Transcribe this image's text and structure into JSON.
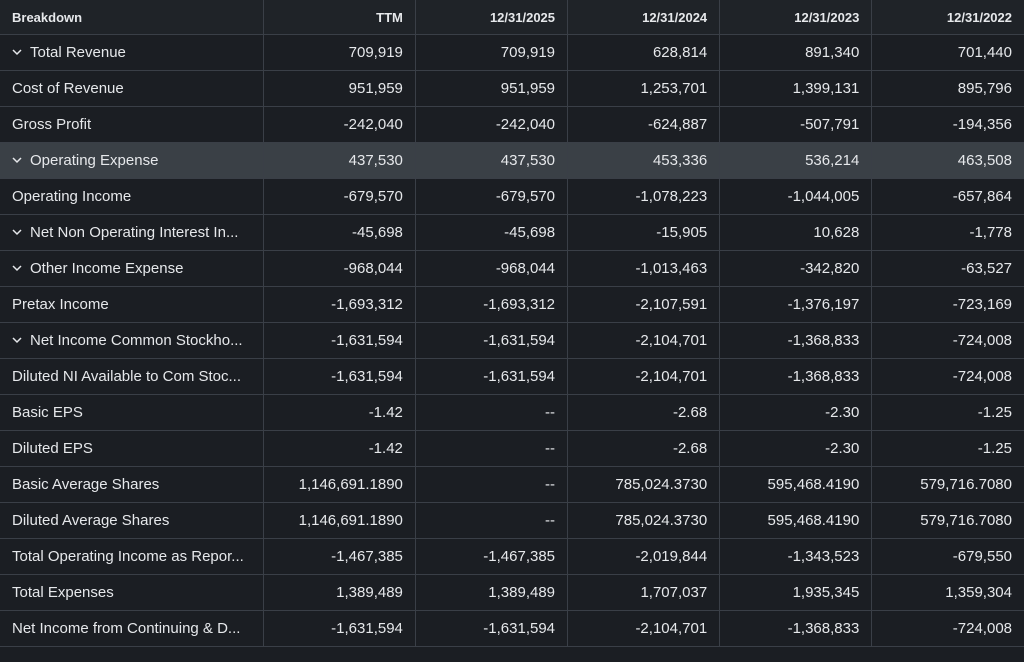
{
  "headers": [
    "Breakdown",
    "TTM",
    "12/31/2025",
    "12/31/2024",
    "12/31/2023",
    "12/31/2022"
  ],
  "rows": [
    {
      "label": "Total Revenue",
      "expandable": true,
      "highlight": false,
      "values": [
        "709,919",
        "709,919",
        "628,814",
        "891,340",
        "701,440"
      ]
    },
    {
      "label": "Cost of Revenue",
      "expandable": false,
      "highlight": false,
      "values": [
        "951,959",
        "951,959",
        "1,253,701",
        "1,399,131",
        "895,796"
      ]
    },
    {
      "label": "Gross Profit",
      "expandable": false,
      "highlight": false,
      "values": [
        "-242,040",
        "-242,040",
        "-624,887",
        "-507,791",
        "-194,356"
      ]
    },
    {
      "label": "Operating Expense",
      "expandable": true,
      "highlight": true,
      "values": [
        "437,530",
        "437,530",
        "453,336",
        "536,214",
        "463,508"
      ]
    },
    {
      "label": "Operating Income",
      "expandable": false,
      "highlight": false,
      "values": [
        "-679,570",
        "-679,570",
        "-1,078,223",
        "-1,044,005",
        "-657,864"
      ]
    },
    {
      "label": "Net Non Operating Interest In...",
      "expandable": true,
      "highlight": false,
      "values": [
        "-45,698",
        "-45,698",
        "-15,905",
        "10,628",
        "-1,778"
      ]
    },
    {
      "label": "Other Income Expense",
      "expandable": true,
      "highlight": false,
      "values": [
        "-968,044",
        "-968,044",
        "-1,013,463",
        "-342,820",
        "-63,527"
      ]
    },
    {
      "label": "Pretax Income",
      "expandable": false,
      "highlight": false,
      "values": [
        "-1,693,312",
        "-1,693,312",
        "-2,107,591",
        "-1,376,197",
        "-723,169"
      ]
    },
    {
      "label": "Net Income Common Stockho...",
      "expandable": true,
      "highlight": false,
      "values": [
        "-1,631,594",
        "-1,631,594",
        "-2,104,701",
        "-1,368,833",
        "-724,008"
      ]
    },
    {
      "label": "Diluted NI Available to Com Stoc...",
      "expandable": false,
      "highlight": false,
      "values": [
        "-1,631,594",
        "-1,631,594",
        "-2,104,701",
        "-1,368,833",
        "-724,008"
      ]
    },
    {
      "label": "Basic EPS",
      "expandable": false,
      "highlight": false,
      "values": [
        "-1.42",
        "--",
        "-2.68",
        "-2.30",
        "-1.25"
      ]
    },
    {
      "label": "Diluted EPS",
      "expandable": false,
      "highlight": false,
      "values": [
        "-1.42",
        "--",
        "-2.68",
        "-2.30",
        "-1.25"
      ]
    },
    {
      "label": "Basic Average Shares",
      "expandable": false,
      "highlight": false,
      "values": [
        "1,146,691.1890",
        "--",
        "785,024.3730",
        "595,468.4190",
        "579,716.7080"
      ]
    },
    {
      "label": "Diluted Average Shares",
      "expandable": false,
      "highlight": false,
      "values": [
        "1,146,691.1890",
        "--",
        "785,024.3730",
        "595,468.4190",
        "579,716.7080"
      ]
    },
    {
      "label": "Total Operating Income as Repor...",
      "expandable": false,
      "highlight": false,
      "values": [
        "-1,467,385",
        "-1,467,385",
        "-2,019,844",
        "-1,343,523",
        "-679,550"
      ]
    },
    {
      "label": "Total Expenses",
      "expandable": false,
      "highlight": false,
      "values": [
        "1,389,489",
        "1,389,489",
        "1,707,037",
        "1,935,345",
        "1,359,304"
      ]
    },
    {
      "label": "Net Income from Continuing & D...",
      "expandable": false,
      "highlight": false,
      "values": [
        "-1,631,594",
        "-1,631,594",
        "-2,104,701",
        "-1,368,833",
        "-724,008"
      ]
    }
  ],
  "icons": {
    "expand": "chevron-down-icon"
  },
  "colors": {
    "background": "#1b1e23",
    "highlight_row": "#3a4046",
    "grid": "#3a3f47",
    "text": "#e6e8eb"
  }
}
